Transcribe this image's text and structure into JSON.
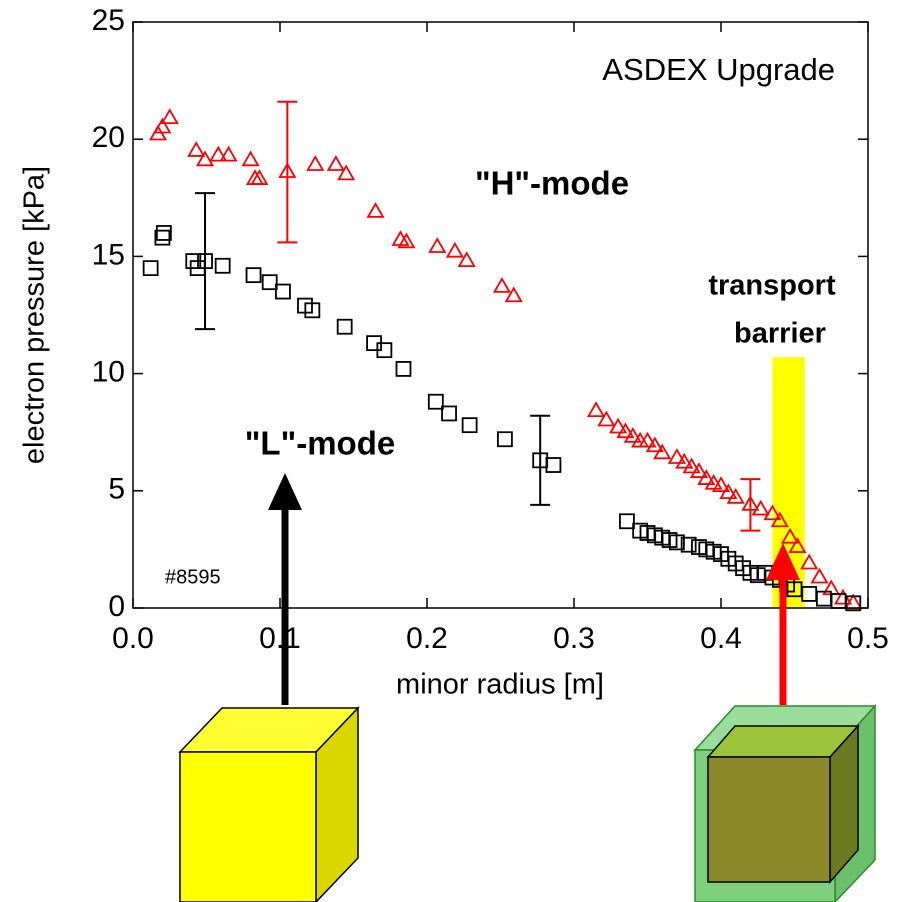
{
  "chart_data": {
    "type": "scatter",
    "title": "ASDEX Upgrade",
    "x_label": "minor radius [m]",
    "y_label": "electron pressure [kPa]",
    "shot_label": "#8595",
    "xlim": [
      0,
      0.5
    ],
    "ylim": [
      0,
      25
    ],
    "xticks": [
      {
        "value": 0,
        "label": "0.0"
      },
      0.1,
      0.2,
      0.3,
      0.4,
      0.5
    ],
    "yticks": [
      0,
      5,
      10,
      15,
      20,
      25
    ],
    "grid": false,
    "barrier": {
      "label_lines": [
        "transport",
        "barrier"
      ],
      "color": "#ffff00",
      "x": [
        0.435,
        0.457
      ],
      "y": [
        0,
        10.7
      ]
    },
    "series": [
      {
        "name": "\"H\"-mode",
        "color": "#ff0000",
        "marker": "triangle",
        "x": [
          0.017,
          0.02,
          0.025,
          0.043,
          0.049,
          0.058,
          0.065,
          0.08,
          0.083,
          0.086,
          0.105,
          0.124,
          0.138,
          0.145,
          0.165,
          0.182,
          0.186,
          0.207,
          0.219,
          0.227,
          0.251,
          0.259,
          0.315,
          0.322,
          0.33,
          0.335,
          0.34,
          0.345,
          0.35,
          0.355,
          0.36,
          0.37,
          0.375,
          0.38,
          0.385,
          0.39,
          0.395,
          0.4,
          0.405,
          0.41,
          0.42,
          0.427,
          0.435,
          0.44,
          0.447,
          0.452,
          0.46,
          0.467,
          0.475,
          0.483,
          0.49
        ],
        "values": [
          20.2,
          20.5,
          20.9,
          19.5,
          19.1,
          19.3,
          19.3,
          19.1,
          18.3,
          18.3,
          18.6,
          18.9,
          18.9,
          18.5,
          16.9,
          15.7,
          15.6,
          15.4,
          15.2,
          14.8,
          13.7,
          13.3,
          8.4,
          8.0,
          7.7,
          7.5,
          7.3,
          7.1,
          7.1,
          6.9,
          6.6,
          6.4,
          6.2,
          6.0,
          5.8,
          5.5,
          5.3,
          5.2,
          4.9,
          4.7,
          4.4,
          4.2,
          4.0,
          3.7,
          3.0,
          2.6,
          1.9,
          1.3,
          0.8,
          0.4,
          0.2
        ],
        "errors": [
          null,
          null,
          null,
          null,
          null,
          null,
          null,
          null,
          null,
          null,
          3.0,
          null,
          null,
          null,
          null,
          null,
          null,
          null,
          null,
          null,
          null,
          null,
          null,
          null,
          null,
          null,
          null,
          null,
          null,
          null,
          null,
          null,
          null,
          null,
          null,
          null,
          null,
          null,
          null,
          null,
          1.1,
          null,
          null,
          null,
          null,
          null,
          null,
          null,
          null,
          null,
          null
        ]
      },
      {
        "name": "\"L\"-mode",
        "color": "#000000",
        "marker": "square",
        "x": [
          0.012,
          0.02,
          0.021,
          0.041,
          0.044,
          0.049,
          0.061,
          0.082,
          0.093,
          0.102,
          0.117,
          0.122,
          0.144,
          0.164,
          0.171,
          0.184,
          0.206,
          0.215,
          0.229,
          0.253,
          0.277,
          0.286,
          0.336,
          0.345,
          0.35,
          0.355,
          0.36,
          0.365,
          0.37,
          0.378,
          0.385,
          0.39,
          0.395,
          0.4,
          0.405,
          0.41,
          0.415,
          0.42,
          0.425,
          0.43,
          0.435,
          0.44,
          0.445,
          0.45,
          0.46,
          0.47,
          0.48,
          0.49
        ],
        "values": [
          14.5,
          15.8,
          16.0,
          14.8,
          14.5,
          14.8,
          14.6,
          14.2,
          13.9,
          13.5,
          12.9,
          12.7,
          12.0,
          11.3,
          11.0,
          10.2,
          8.8,
          8.3,
          7.8,
          7.2,
          6.3,
          6.1,
          3.7,
          3.3,
          3.2,
          3.1,
          3.0,
          2.9,
          2.8,
          2.7,
          2.6,
          2.5,
          2.4,
          2.3,
          2.1,
          1.9,
          1.7,
          1.5,
          1.4,
          1.5,
          1.3,
          1.2,
          1.0,
          0.8,
          0.6,
          0.4,
          0.3,
          0.2
        ],
        "errors": [
          null,
          null,
          null,
          null,
          null,
          2.9,
          null,
          null,
          null,
          null,
          null,
          null,
          null,
          null,
          null,
          null,
          null,
          null,
          null,
          null,
          1.9,
          null,
          null,
          null,
          null,
          null,
          null,
          null,
          null,
          null,
          null,
          null,
          null,
          null,
          null,
          null,
          null,
          null,
          null,
          null,
          null,
          null,
          null,
          null,
          null,
          null,
          null,
          null
        ]
      }
    ]
  }
}
